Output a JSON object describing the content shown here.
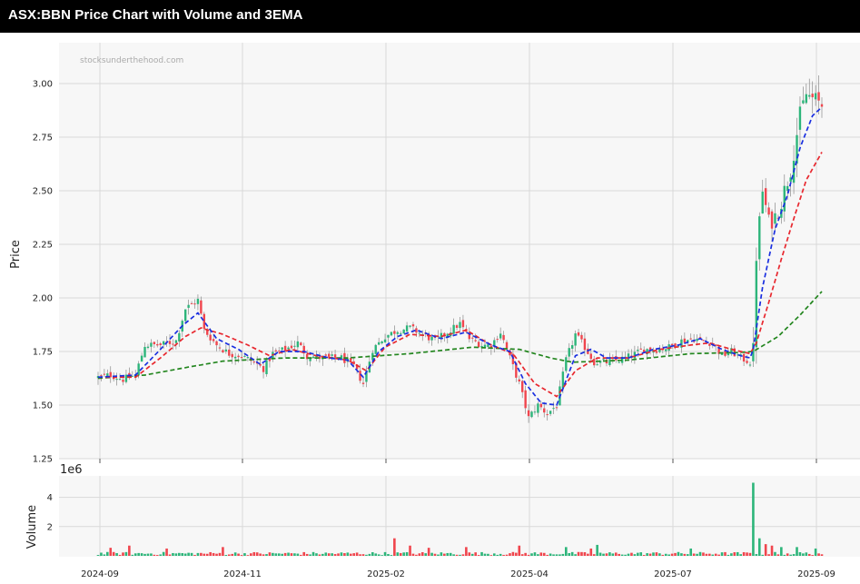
{
  "title": "ASX:BBN Price Chart with Volume and 3EMA",
  "chart_data": {
    "type": "candlestick",
    "watermark": "stocksunderthehood.com",
    "price_ylabel": "Price",
    "volume_ylabel": "Volume",
    "volume_exponent_label": "1e6",
    "price_ylim": [
      1.25,
      3.15
    ],
    "price_yticks": [
      "1.25",
      "1.50",
      "1.75",
      "2.00",
      "2.25",
      "2.50",
      "2.75",
      "3.00"
    ],
    "volume_ylim": [
      0,
      5.5
    ],
    "volume_yticks": [
      "2",
      "4"
    ],
    "x_tick_labels": [
      "2024-09",
      "2024-11",
      "2025-02",
      "2025-04",
      "2025-07",
      "2025-09"
    ],
    "grid": true,
    "colors": {
      "up": "#2db57a",
      "down": "#f0454d",
      "ema_fast": "#1a2fe0",
      "ema_mid": "#e8282f",
      "ema_slow": "#23861f",
      "panel_bg": "#f7f7f7",
      "grid": "#d9d9d9"
    },
    "series_close_anchors": [
      [
        0,
        1.63
      ],
      [
        4,
        1.64
      ],
      [
        8,
        1.62
      ],
      [
        12,
        1.64
      ],
      [
        15,
        1.78
      ],
      [
        20,
        1.78
      ],
      [
        25,
        1.8
      ],
      [
        28,
        1.95
      ],
      [
        32,
        1.99
      ],
      [
        34,
        1.85
      ],
      [
        38,
        1.78
      ],
      [
        42,
        1.74
      ],
      [
        46,
        1.73
      ],
      [
        50,
        1.7
      ],
      [
        53,
        1.67
      ],
      [
        56,
        1.74
      ],
      [
        60,
        1.76
      ],
      [
        64,
        1.79
      ],
      [
        67,
        1.73
      ],
      [
        72,
        1.72
      ],
      [
        78,
        1.72
      ],
      [
        82,
        1.68
      ],
      [
        85,
        1.6
      ],
      [
        88,
        1.76
      ],
      [
        92,
        1.82
      ],
      [
        96,
        1.85
      ],
      [
        100,
        1.86
      ],
      [
        104,
        1.83
      ],
      [
        108,
        1.8
      ],
      [
        112,
        1.84
      ],
      [
        116,
        1.88
      ],
      [
        119,
        1.81
      ],
      [
        123,
        1.78
      ],
      [
        126,
        1.78
      ],
      [
        129,
        1.84
      ],
      [
        132,
        1.72
      ],
      [
        135,
        1.6
      ],
      [
        138,
        1.44
      ],
      [
        141,
        1.5
      ],
      [
        144,
        1.46
      ],
      [
        147,
        1.5
      ],
      [
        150,
        1.71
      ],
      [
        153,
        1.83
      ],
      [
        156,
        1.77
      ],
      [
        159,
        1.7
      ],
      [
        163,
        1.7
      ],
      [
        167,
        1.71
      ],
      [
        171,
        1.73
      ],
      [
        175,
        1.76
      ],
      [
        179,
        1.76
      ],
      [
        183,
        1.77
      ],
      [
        187,
        1.8
      ],
      [
        191,
        1.81
      ],
      [
        194,
        1.8
      ],
      [
        197,
        1.79
      ],
      [
        200,
        1.73
      ],
      [
        203,
        1.75
      ],
      [
        206,
        1.72
      ],
      [
        209,
        1.7
      ],
      [
        210,
        1.75
      ],
      [
        211,
        2.2
      ],
      [
        213,
        2.5
      ],
      [
        215,
        2.35
      ],
      [
        217,
        2.38
      ],
      [
        219,
        2.45
      ],
      [
        222,
        2.6
      ],
      [
        225,
        2.85
      ],
      [
        227,
        2.95
      ],
      [
        230,
        2.92
      ],
      [
        232,
        2.9
      ]
    ],
    "ema_fast_anchors": [
      [
        0,
        1.63
      ],
      [
        12,
        1.64
      ],
      [
        20,
        1.76
      ],
      [
        27,
        1.87
      ],
      [
        32,
        1.93
      ],
      [
        38,
        1.81
      ],
      [
        45,
        1.76
      ],
      [
        52,
        1.69
      ],
      [
        58,
        1.75
      ],
      [
        66,
        1.75
      ],
      [
        74,
        1.72
      ],
      [
        80,
        1.71
      ],
      [
        85,
        1.63
      ],
      [
        90,
        1.75
      ],
      [
        96,
        1.82
      ],
      [
        102,
        1.85
      ],
      [
        110,
        1.81
      ],
      [
        118,
        1.84
      ],
      [
        126,
        1.78
      ],
      [
        132,
        1.75
      ],
      [
        137,
        1.6
      ],
      [
        142,
        1.51
      ],
      [
        147,
        1.5
      ],
      [
        153,
        1.73
      ],
      [
        158,
        1.76
      ],
      [
        163,
        1.72
      ],
      [
        170,
        1.72
      ],
      [
        178,
        1.76
      ],
      [
        186,
        1.78
      ],
      [
        193,
        1.81
      ],
      [
        200,
        1.76
      ],
      [
        206,
        1.73
      ],
      [
        209,
        1.72
      ],
      [
        210,
        1.76
      ],
      [
        213,
        2.05
      ],
      [
        217,
        2.32
      ],
      [
        221,
        2.48
      ],
      [
        225,
        2.7
      ],
      [
        229,
        2.85
      ],
      [
        232,
        2.89
      ]
    ],
    "ema_mid_anchors": [
      [
        0,
        1.63
      ],
      [
        12,
        1.63
      ],
      [
        20,
        1.72
      ],
      [
        28,
        1.82
      ],
      [
        33,
        1.86
      ],
      [
        40,
        1.83
      ],
      [
        48,
        1.78
      ],
      [
        55,
        1.73
      ],
      [
        62,
        1.76
      ],
      [
        70,
        1.73
      ],
      [
        80,
        1.71
      ],
      [
        86,
        1.66
      ],
      [
        92,
        1.77
      ],
      [
        100,
        1.83
      ],
      [
        110,
        1.82
      ],
      [
        118,
        1.85
      ],
      [
        126,
        1.78
      ],
      [
        133,
        1.74
      ],
      [
        140,
        1.6
      ],
      [
        147,
        1.54
      ],
      [
        153,
        1.66
      ],
      [
        160,
        1.72
      ],
      [
        170,
        1.72
      ],
      [
        180,
        1.76
      ],
      [
        190,
        1.78
      ],
      [
        196,
        1.79
      ],
      [
        203,
        1.76
      ],
      [
        209,
        1.74
      ],
      [
        211,
        1.79
      ],
      [
        215,
        1.98
      ],
      [
        219,
        2.18
      ],
      [
        223,
        2.37
      ],
      [
        227,
        2.55
      ],
      [
        232,
        2.68
      ]
    ],
    "ema_slow_anchors": [
      [
        0,
        1.625
      ],
      [
        15,
        1.64
      ],
      [
        30,
        1.68
      ],
      [
        40,
        1.705
      ],
      [
        60,
        1.72
      ],
      [
        80,
        1.72
      ],
      [
        100,
        1.74
      ],
      [
        120,
        1.77
      ],
      [
        135,
        1.76
      ],
      [
        145,
        1.72
      ],
      [
        152,
        1.7
      ],
      [
        170,
        1.71
      ],
      [
        190,
        1.74
      ],
      [
        205,
        1.745
      ],
      [
        210,
        1.75
      ],
      [
        218,
        1.82
      ],
      [
        225,
        1.92
      ],
      [
        232,
        2.03
      ]
    ],
    "volume_notes": "Volume bars mostly below 0.5 million; largest spike about 5.0 million near 2025-08 (day 210), others near 1.0-1.2 million."
  }
}
